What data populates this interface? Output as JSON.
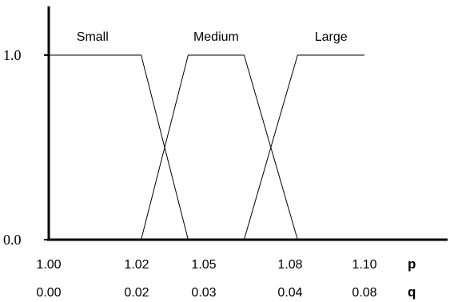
{
  "chart_data": {
    "type": "line",
    "title": "",
    "xlabel": "",
    "ylabel": "",
    "y_ticks": [
      "1.0",
      "0.0"
    ],
    "x_tick_rows": [
      {
        "axis_name": "p",
        "labels": [
          "1.00",
          "1.02",
          "1.05",
          "1.08",
          "1.10"
        ]
      },
      {
        "axis_name": "q",
        "labels": [
          "0.00",
          "0.02",
          "0.03",
          "0.04",
          "0.08"
        ]
      }
    ],
    "x_tick_positions_in_p": [
      1.0,
      1.02,
      1.05,
      1.08,
      1.1
    ],
    "ylim": [
      0,
      1
    ],
    "series": [
      {
        "name": "Small",
        "points": [
          [
            1.0,
            1.0
          ],
          [
            1.022,
            1.0
          ],
          [
            1.043,
            0.0
          ]
        ]
      },
      {
        "name": "Medium",
        "points": [
          [
            1.022,
            0.0
          ],
          [
            1.043,
            1.0
          ],
          [
            1.064,
            1.0
          ],
          [
            1.082,
            0.0
          ]
        ]
      },
      {
        "name": "Large",
        "points": [
          [
            1.064,
            0.0
          ],
          [
            1.082,
            1.0
          ],
          [
            1.1,
            1.0
          ]
        ]
      }
    ]
  }
}
